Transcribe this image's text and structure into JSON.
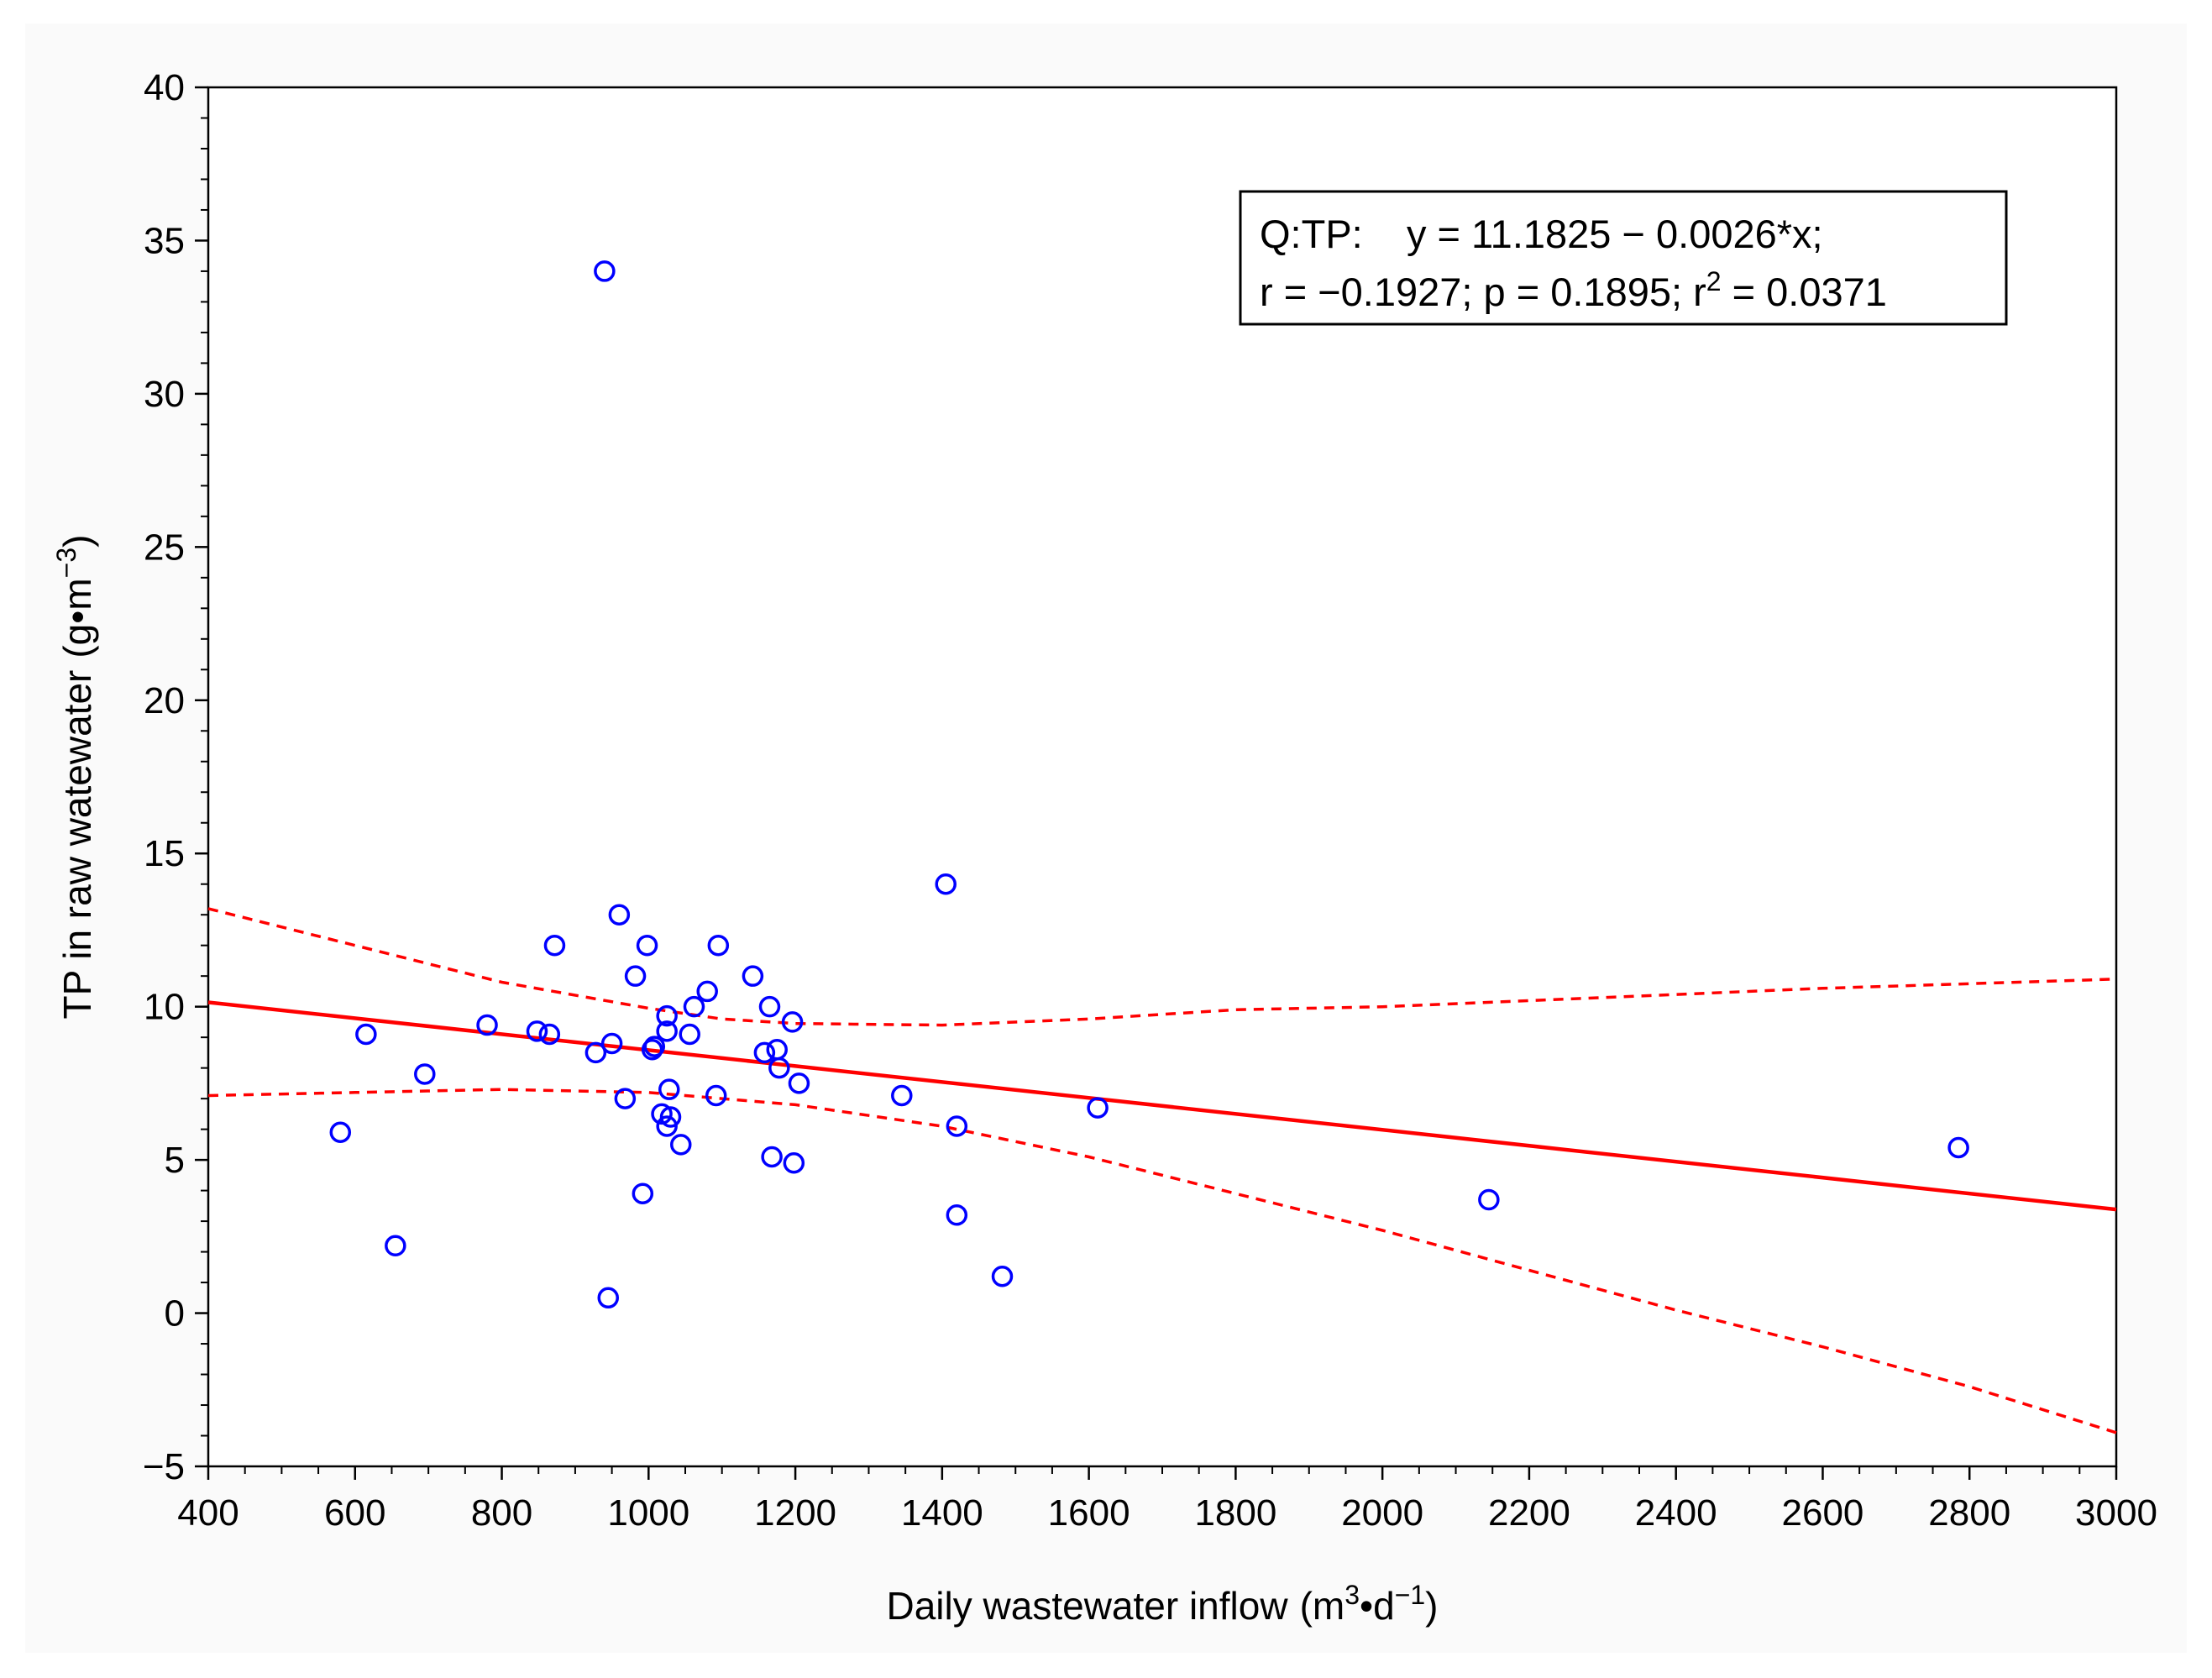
{
  "chart_data": {
    "type": "scatter",
    "xlabel": "Daily wastewater inflow",
    "xlabel_unit": {
      "open": "(m",
      "sup1": "3",
      "mid": "•d",
      "sup2": "−1",
      "close": ")"
    },
    "ylabel": "TP in raw watewater",
    "ylabel_unit": {
      "open": "(g•m",
      "sup": "−3",
      "close": ")"
    },
    "xlim": [
      400,
      3000
    ],
    "ylim": [
      -5,
      40
    ],
    "xticks": [
      400,
      600,
      800,
      1000,
      1200,
      1400,
      1600,
      1800,
      2000,
      2200,
      2400,
      2600,
      2800,
      3000
    ],
    "yticks": [
      -5,
      0,
      5,
      10,
      15,
      20,
      25,
      30,
      35,
      40
    ],
    "ytick_labels": [
      "−5",
      "0",
      "5",
      "10",
      "15",
      "20",
      "25",
      "30",
      "35",
      "40"
    ],
    "annotation": {
      "line1": "Q:TP:    y = 11.1825 − 0.0026*x;",
      "line2_a": "r = −0.1927; p = 0.1895; r",
      "line2_sup": "2",
      "line2_b": " = 0.0371"
    },
    "regression": {
      "intercept": 11.1825,
      "slope": -0.0026,
      "color": "#ff0000"
    },
    "confidence_upper": [
      [
        400,
        13.2
      ],
      [
        600,
        12.0
      ],
      [
        800,
        10.8
      ],
      [
        1000,
        9.95
      ],
      [
        1100,
        9.6
      ],
      [
        1200,
        9.45
      ],
      [
        1400,
        9.4
      ],
      [
        1600,
        9.6
      ],
      [
        1800,
        9.9
      ],
      [
        2000,
        10.0
      ],
      [
        2200,
        10.2
      ],
      [
        2400,
        10.4
      ],
      [
        2600,
        10.6
      ],
      [
        3000,
        10.9
      ]
    ],
    "confidence_lower": [
      [
        400,
        7.1
      ],
      [
        600,
        7.2
      ],
      [
        800,
        7.3
      ],
      [
        1000,
        7.2
      ],
      [
        1200,
        6.8
      ],
      [
        1400,
        6.1
      ],
      [
        1600,
        5.1
      ],
      [
        1800,
        3.9
      ],
      [
        2000,
        2.7
      ],
      [
        2200,
        1.4
      ],
      [
        2400,
        0.1
      ],
      [
        2600,
        -1.1
      ],
      [
        2800,
        -2.4
      ],
      [
        3000,
        -3.9
      ]
    ],
    "point_color": "#0000ff",
    "points": [
      [
        580,
        5.9
      ],
      [
        615,
        9.1
      ],
      [
        655,
        2.2
      ],
      [
        695,
        7.8
      ],
      [
        780,
        9.4
      ],
      [
        848,
        9.2
      ],
      [
        865,
        9.1
      ],
      [
        872,
        12.0
      ],
      [
        928,
        8.5
      ],
      [
        940,
        34.0
      ],
      [
        945,
        0.5
      ],
      [
        950,
        8.8
      ],
      [
        960,
        13.0
      ],
      [
        968,
        7.0
      ],
      [
        982,
        11.0
      ],
      [
        992,
        3.9
      ],
      [
        998,
        12.0
      ],
      [
        1005,
        8.6
      ],
      [
        1008,
        8.7
      ],
      [
        1018,
        6.5
      ],
      [
        1025,
        9.7
      ],
      [
        1025,
        9.2
      ],
      [
        1025,
        6.1
      ],
      [
        1028,
        7.3
      ],
      [
        1030,
        6.4
      ],
      [
        1044,
        5.5
      ],
      [
        1056,
        9.1
      ],
      [
        1062,
        10.0
      ],
      [
        1080,
        10.5
      ],
      [
        1092,
        7.1
      ],
      [
        1095,
        12.0
      ],
      [
        1142,
        11.0
      ],
      [
        1158,
        8.5
      ],
      [
        1165,
        10.0
      ],
      [
        1168,
        5.1
      ],
      [
        1175,
        8.6
      ],
      [
        1178,
        8.0
      ],
      [
        1196,
        9.5
      ],
      [
        1198,
        4.9
      ],
      [
        1205,
        7.5
      ],
      [
        1345,
        7.1
      ],
      [
        1405,
        14.0
      ],
      [
        1420,
        6.1
      ],
      [
        1420,
        3.2
      ],
      [
        1482,
        1.2
      ],
      [
        1612,
        6.7
      ],
      [
        2145,
        3.7
      ],
      [
        2785,
        5.4
      ]
    ]
  }
}
